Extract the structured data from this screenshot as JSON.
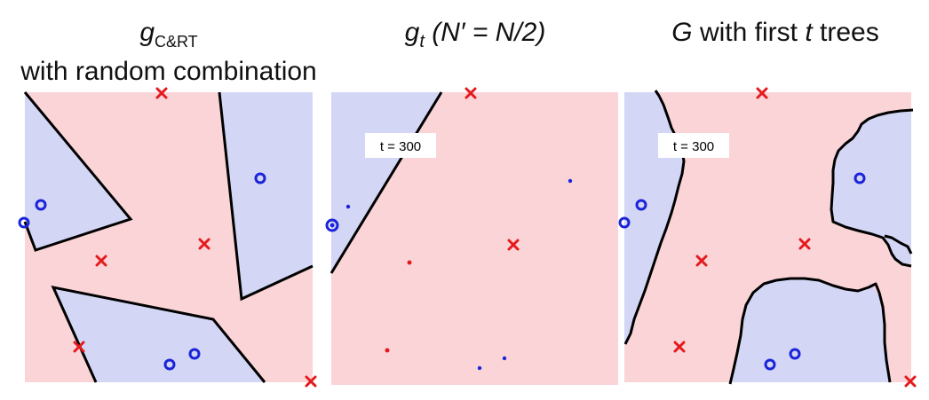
{
  "colors": {
    "region_x": "#fbd4d8",
    "region_o": "#d4d6f6",
    "x_mark": "#e41a1c",
    "o_mark": "#1a24d8",
    "boundary": "#000000"
  },
  "panels": [
    {
      "title_line1": {
        "g": "g",
        "sub": "C&RT"
      },
      "title_line2": "with random combination",
      "label": ""
    },
    {
      "title": {
        "g": "g",
        "t": "t",
        "rest": " (N′ = N/2)"
      },
      "label": "t = 300"
    },
    {
      "title": {
        "G": "G",
        "mid": " with first ",
        "t": "t",
        "end": " trees"
      },
      "label": "t = 300"
    }
  ],
  "marker_legend": {
    "x": "x",
    "o": "o"
  }
}
